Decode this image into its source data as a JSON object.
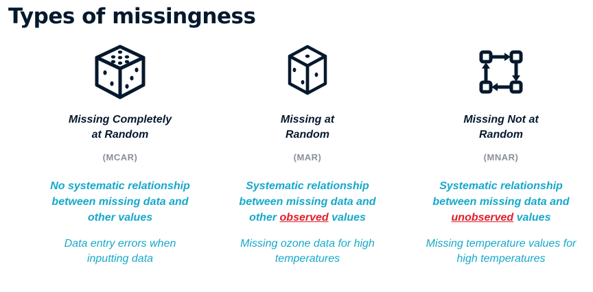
{
  "title": "Types of missingness",
  "colors": {
    "heading": "#05192d",
    "accent": "#16a8c9",
    "emphasis": "#e11d2a",
    "muted": "#8a8f98"
  },
  "columns": [
    {
      "icon": "dice-three-face-icon",
      "name_line1": "Missing Completely",
      "name_line2": "at Random",
      "abbr": "(MCAR)",
      "desc_line1": "No systematic relationship",
      "desc_line2": "between missing data and",
      "desc_line3": "other values",
      "example_line1": "Data entry errors when",
      "example_line2": "inputting data"
    },
    {
      "icon": "dice-single-dot-icon",
      "name_line1": "Missing at",
      "name_line2": "Random",
      "abbr": "(MAR)",
      "desc_line1": "Systematic relationship",
      "desc_line2": "between missing data and",
      "desc_pre": "other ",
      "desc_emph": "observed",
      "desc_post": " values",
      "example_line1": "Missing ozone data for high",
      "example_line2": "temperatures"
    },
    {
      "icon": "cycle-arrows-icon",
      "name_line1": "Missing Not at",
      "name_line2": "Random",
      "abbr": "(MNAR)",
      "desc_line1": "Systematic relationship",
      "desc_line2": "between missing data and",
      "desc_emph": "unobserved",
      "desc_post": " values",
      "example_line1": "Missing temperature values for",
      "example_line2": "high temperatures"
    }
  ]
}
